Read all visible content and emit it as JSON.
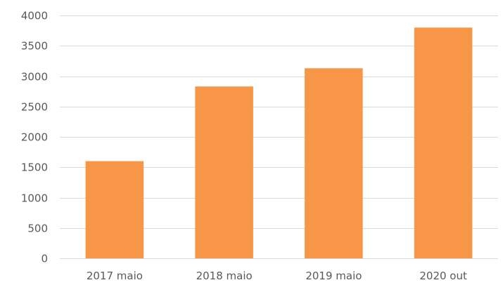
{
  "chart_data": {
    "type": "bar",
    "categories": [
      "2017 maio",
      "2018 maio",
      "2019 maio",
      "2020 out"
    ],
    "series": [
      {
        "values": [
          1600,
          2830,
          3130,
          3800
        ],
        "color": "#f79646"
      }
    ],
    "ylim": [
      0,
      4000
    ],
    "yticks": [
      0,
      500,
      1000,
      1500,
      2000,
      2500,
      3000,
      3500,
      4000
    ],
    "grid": true,
    "legend": "none"
  }
}
